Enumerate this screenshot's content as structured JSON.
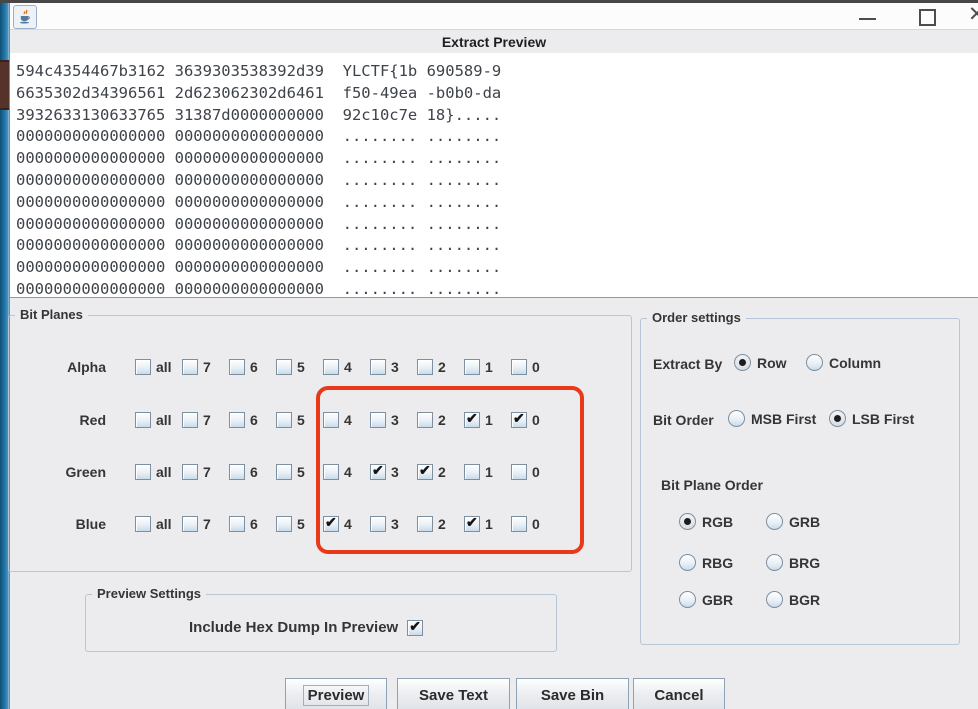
{
  "window": {
    "app_icon": "java-coffee-cup",
    "minimize_icon": "dash",
    "maximize_icon": "square",
    "close_icon": "✕",
    "dialog_title": "Extract Preview"
  },
  "hex_preview": {
    "lines": [
      "594c4354467b3162 3639303538392d39  YLCTF{1b 690589-9",
      "6635302d34396561 2d623062302d6461  f50-49ea -b0b0-da",
      "3932633130633765 31387d0000000000  92c10c7e 18}.....",
      "0000000000000000 0000000000000000  ........ ........",
      "0000000000000000 0000000000000000  ........ ........",
      "0000000000000000 0000000000000000  ........ ........",
      "0000000000000000 0000000000000000  ........ ........",
      "0000000000000000 0000000000000000  ........ ........",
      "0000000000000000 0000000000000000  ........ ........",
      "0000000000000000 0000000000000000  ........ ........",
      "0000000000000000 0000000000000000  ........ ........"
    ]
  },
  "bit_planes": {
    "title": "Bit Planes",
    "bit_labels": [
      "all",
      "7",
      "6",
      "5",
      "4",
      "3",
      "2",
      "1",
      "0"
    ],
    "channels": [
      {
        "name": "Alpha",
        "checked": []
      },
      {
        "name": "Red",
        "checked": [
          "1",
          "0"
        ]
      },
      {
        "name": "Green",
        "checked": [
          "3",
          "2"
        ]
      },
      {
        "name": "Blue",
        "checked": [
          "4",
          "1"
        ]
      }
    ]
  },
  "annotation": {
    "shape": "rounded-rectangle",
    "color": "#e8391b"
  },
  "order_settings": {
    "title": "Order settings",
    "extract_by": {
      "label": "Extract By",
      "options": [
        {
          "label": "Row",
          "selected": true
        },
        {
          "label": "Column",
          "selected": false
        }
      ]
    },
    "bit_order": {
      "label": "Bit Order",
      "options": [
        {
          "label": "MSB First",
          "selected": false
        },
        {
          "label": "LSB First",
          "selected": true
        }
      ]
    },
    "bit_plane_order": {
      "label": "Bit Plane Order",
      "options": [
        {
          "label": "RGB",
          "selected": true
        },
        {
          "label": "GRB",
          "selected": false
        },
        {
          "label": "RBG",
          "selected": false
        },
        {
          "label": "BRG",
          "selected": false
        },
        {
          "label": "GBR",
          "selected": false
        },
        {
          "label": "BGR",
          "selected": false
        }
      ]
    }
  },
  "preview_settings": {
    "title": "Preview Settings",
    "checkbox_label": "Include Hex Dump In Preview",
    "include_hex_dump": true
  },
  "actions": [
    {
      "label": "Preview",
      "focused": true
    },
    {
      "label": "Save Text",
      "focused": false
    },
    {
      "label": "Save Bin",
      "focused": false
    },
    {
      "label": "Cancel",
      "focused": false
    }
  ]
}
